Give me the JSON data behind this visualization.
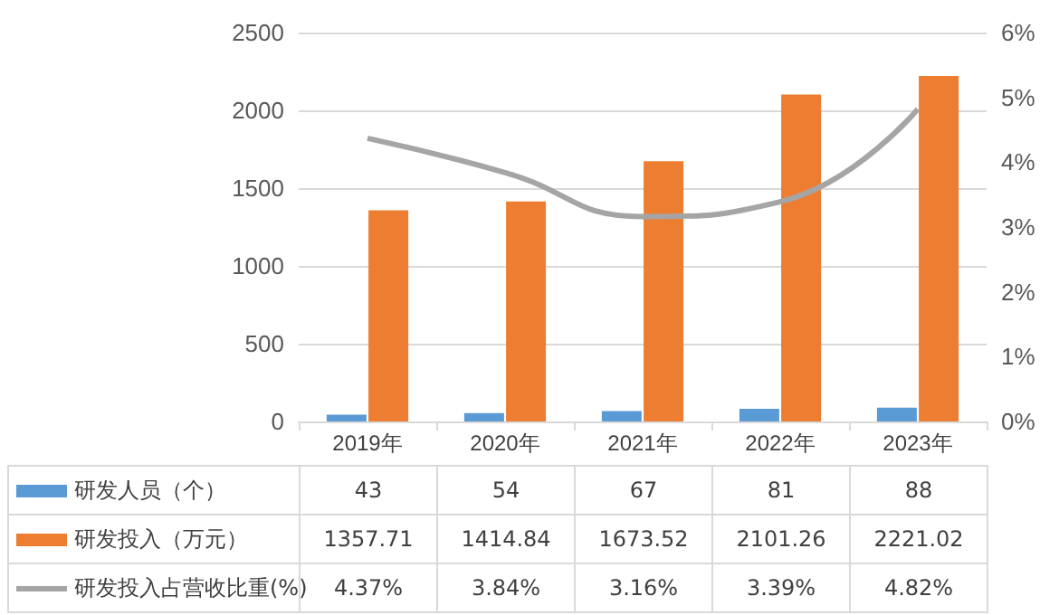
{
  "chart_data": {
    "type": "bar",
    "categories": [
      "2019年",
      "2020年",
      "2021年",
      "2022年",
      "2023年"
    ],
    "series": [
      {
        "name": "研发人员（个）",
        "color": "#5b9bd5",
        "values": [
          43,
          54,
          67,
          81,
          88
        ],
        "value_labels": [
          "43",
          "54",
          "67",
          "81",
          "88"
        ]
      },
      {
        "name": "研发投入（万元）",
        "color": "#ed7d31",
        "values": [
          1357.71,
          1414.84,
          1673.52,
          2101.26,
          2221.02
        ],
        "value_labels": [
          "1357.71",
          "1414.84",
          "1673.52",
          "2101.26",
          "2221.02"
        ]
      },
      {
        "name": "研发投入占营收比重(%)",
        "color": "#a5a5a5",
        "type": "line",
        "axis": "y2",
        "marker": "none",
        "values": [
          4.37,
          3.84,
          3.16,
          3.39,
          4.82
        ],
        "value_labels": [
          "4.37%",
          "3.84%",
          "3.16%",
          "3.39%",
          "4.82%"
        ]
      }
    ],
    "ylim": [
      0,
      2500
    ],
    "yticks": [
      0,
      500,
      1000,
      1500,
      2000,
      2500
    ],
    "y2lim": [
      0,
      6
    ],
    "y2ticks": [
      {
        "value": 0,
        "label": "0%"
      },
      {
        "value": 1,
        "label": "1%"
      },
      {
        "value": 2,
        "label": "2%"
      },
      {
        "value": 3,
        "label": "3%"
      },
      {
        "value": 4,
        "label": "4%"
      },
      {
        "value": 5,
        "label": "5%"
      },
      {
        "value": 6,
        "label": "6%"
      }
    ],
    "grid": "y",
    "legend": "bottom"
  }
}
